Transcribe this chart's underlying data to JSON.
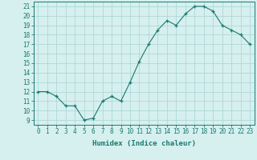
{
  "x": [
    0,
    1,
    2,
    3,
    4,
    5,
    6,
    7,
    8,
    9,
    10,
    11,
    12,
    13,
    14,
    15,
    16,
    17,
    18,
    19,
    20,
    21,
    22,
    23
  ],
  "y": [
    12,
    12,
    11.5,
    10.5,
    10.5,
    9,
    9.2,
    11,
    11.5,
    11,
    13,
    15.2,
    17,
    18.5,
    19.5,
    19,
    20.2,
    21,
    21,
    20.5,
    19,
    18.5,
    18,
    17
  ],
  "line_color": "#1a7a6e",
  "marker": "+",
  "marker_color": "#1a7a6e",
  "bg_color": "#d6efef",
  "grid_color": "#b0d8d8",
  "xlabel": "Humidex (Indice chaleur)",
  "ylabel_ticks": [
    9,
    10,
    11,
    12,
    13,
    14,
    15,
    16,
    17,
    18,
    19,
    20,
    21
  ],
  "xlim": [
    -0.5,
    23.5
  ],
  "ylim": [
    8.5,
    21.5
  ],
  "xlabel_fontsize": 6.5,
  "tick_fontsize": 5.5,
  "axis_color": "#1a7a6e",
  "xticks": [
    0,
    1,
    2,
    3,
    4,
    5,
    6,
    7,
    8,
    9,
    10,
    11,
    12,
    13,
    14,
    15,
    16,
    17,
    18,
    19,
    20,
    21,
    22,
    23
  ],
  "xtick_labels": [
    "0",
    "1",
    "2",
    "3",
    "4",
    "5",
    "6",
    "7",
    "8",
    "9",
    "10",
    "11",
    "12",
    "13",
    "14",
    "15",
    "16",
    "17",
    "18",
    "19",
    "20",
    "21",
    "22",
    "23"
  ]
}
